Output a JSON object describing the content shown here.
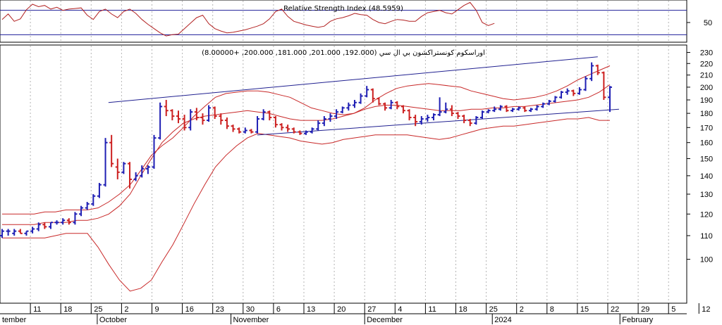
{
  "chart_data": [
    {
      "type": "line",
      "panel": "rsi",
      "title": "Relative Strength Index (48.5959)",
      "ylim": [
        20,
        80
      ],
      "y_ticks": [
        50
      ],
      "reference_levels": [
        70,
        30
      ],
      "grid": true,
      "colors": {
        "line": "#b22222",
        "reference": "#1e1e9a",
        "grid": "#b4b4b4"
      },
      "series": [
        {
          "values": [
            55,
            64,
            52,
            56,
            71,
            80,
            76,
            78,
            72,
            75,
            70,
            72,
            73,
            74,
            62,
            55,
            68,
            72,
            64,
            58,
            68,
            72,
            65,
            55,
            47,
            40,
            33,
            28,
            30,
            31,
            40,
            49,
            58,
            62,
            48,
            40,
            36,
            33,
            34,
            36,
            38,
            41,
            44,
            48,
            56,
            68,
            72,
            60,
            52,
            49,
            46,
            44,
            42,
            44,
            52,
            56,
            58,
            61,
            65,
            63,
            62,
            55,
            50,
            48,
            52,
            55,
            54,
            52,
            52,
            60,
            66,
            68,
            70,
            66,
            64,
            71,
            78,
            83,
            70,
            50,
            45,
            48.6
          ]
        }
      ]
    },
    {
      "type": "ohlc",
      "panel": "price",
      "title": "اوراسكوم كونستراكشون بي ال سي (192.000, 201.000, 181.000, 200.000, +8.00000)",
      "y_scale": "log",
      "ylim": [
        85,
        233
      ],
      "y_ticks": [
        100,
        110,
        120,
        130,
        140,
        150,
        160,
        170,
        180,
        190,
        200,
        210,
        220,
        230
      ],
      "x_tick_labels": [
        "11",
        "18",
        "25",
        "2",
        "9",
        "16",
        "23",
        "30",
        "6",
        "13",
        "20",
        "27",
        "4",
        "11",
        "18",
        "25",
        "2",
        "8",
        "15",
        "22",
        "29",
        "5",
        "12"
      ],
      "month_labels": [
        "tember",
        "October",
        "November",
        "December",
        "2024",
        "February"
      ],
      "grid": true,
      "colors": {
        "up": "#1f1fb4",
        "down": "#cc2020",
        "band": "#c82828",
        "trendline": "#202090",
        "grid": "#b4b4b4"
      },
      "bars": [
        [
          110,
          113,
          109,
          112
        ],
        [
          112,
          113,
          110,
          112
        ],
        [
          111,
          113,
          110,
          112
        ],
        [
          112,
          113,
          111,
          111
        ],
        [
          111,
          112,
          110,
          112
        ],
        [
          112,
          114,
          111,
          113
        ],
        [
          113,
          116,
          112,
          115
        ],
        [
          115,
          116,
          113,
          114
        ],
        [
          114,
          116,
          113,
          116
        ],
        [
          116,
          117,
          115,
          116
        ],
        [
          116,
          118,
          115,
          117
        ],
        [
          117,
          118,
          115,
          116
        ],
        [
          116,
          121,
          115,
          120
        ],
        [
          120,
          124,
          119,
          123
        ],
        [
          123,
          126,
          122,
          125
        ],
        [
          125,
          130,
          124,
          129
        ],
        [
          129,
          136,
          128,
          135
        ],
        [
          135,
          163,
          134,
          160
        ],
        [
          160,
          165,
          145,
          147
        ],
        [
          145,
          150,
          138,
          142
        ],
        [
          142,
          148,
          141,
          147
        ],
        [
          147,
          148,
          133,
          138
        ],
        [
          138,
          142,
          137,
          140
        ],
        [
          140,
          146,
          139,
          144
        ],
        [
          144,
          146,
          141,
          145
        ],
        [
          145,
          165,
          144,
          163
        ],
        [
          163,
          188,
          162,
          185
        ],
        [
          185,
          190,
          178,
          182
        ],
        [
          182,
          183,
          175,
          178
        ],
        [
          178,
          182,
          173,
          176
        ],
        [
          176,
          179,
          168,
          170
        ],
        [
          170,
          183,
          168,
          181
        ],
        [
          181,
          184,
          175,
          177
        ],
        [
          177,
          180,
          172,
          175
        ],
        [
          175,
          186,
          174,
          184
        ],
        [
          184,
          185,
          176,
          178
        ],
        [
          178,
          180,
          172,
          175
        ],
        [
          175,
          177,
          169,
          171
        ],
        [
          171,
          172,
          167,
          169
        ],
        [
          169,
          170,
          166,
          167
        ],
        [
          167,
          170,
          166,
          168
        ],
        [
          168,
          169,
          166,
          167
        ],
        [
          167,
          178,
          166,
          176
        ],
        [
          176,
          183,
          175,
          181
        ],
        [
          181,
          182,
          175,
          177
        ],
        [
          177,
          178,
          170,
          172
        ],
        [
          172,
          173,
          168,
          170
        ],
        [
          170,
          172,
          167,
          169
        ],
        [
          169,
          170,
          166,
          167
        ],
        [
          167,
          168,
          165,
          166
        ],
        [
          166,
          168,
          165,
          167
        ],
        [
          167,
          170,
          166,
          169
        ],
        [
          169,
          175,
          168,
          173
        ],
        [
          173,
          178,
          171,
          176
        ],
        [
          176,
          180,
          174,
          178
        ],
        [
          178,
          183,
          176,
          181
        ],
        [
          181,
          185,
          180,
          184
        ],
        [
          184,
          188,
          182,
          186
        ],
        [
          186,
          190,
          184,
          188
        ],
        [
          188,
          195,
          187,
          193
        ],
        [
          193,
          201,
          192,
          198
        ],
        [
          198,
          199,
          188,
          191
        ],
        [
          191,
          192,
          186,
          187
        ],
        [
          187,
          188,
          182,
          184
        ],
        [
          184,
          190,
          183,
          188
        ],
        [
          188,
          189,
          183,
          185
        ],
        [
          185,
          186,
          180,
          182
        ],
        [
          182,
          183,
          175,
          177
        ],
        [
          177,
          179,
          171,
          174
        ],
        [
          174,
          178,
          172,
          176
        ],
        [
          176,
          179,
          174,
          177
        ],
        [
          177,
          180,
          175,
          179
        ],
        [
          179,
          192,
          178,
          181
        ],
        [
          181,
          188,
          180,
          183
        ],
        [
          183,
          186,
          178,
          180
        ],
        [
          180,
          181,
          176,
          178
        ],
        [
          178,
          179,
          173,
          175
        ],
        [
          175,
          176,
          171,
          173
        ],
        [
          173,
          178,
          172,
          177
        ],
        [
          177,
          182,
          176,
          181
        ],
        [
          181,
          183,
          180,
          182
        ],
        [
          182,
          185,
          181,
          183
        ],
        [
          183,
          186,
          182,
          185
        ],
        [
          185,
          186,
          181,
          182
        ],
        [
          182,
          184,
          181,
          183
        ],
        [
          183,
          185,
          182,
          184
        ],
        [
          184,
          185,
          181,
          182
        ],
        [
          182,
          184,
          181,
          183
        ],
        [
          183,
          186,
          182,
          185
        ],
        [
          185,
          188,
          184,
          187
        ],
        [
          187,
          190,
          186,
          189
        ],
        [
          189,
          193,
          188,
          192
        ],
        [
          192,
          197,
          191,
          196
        ],
        [
          196,
          199,
          194,
          197
        ],
        [
          197,
          198,
          193,
          195
        ],
        [
          195,
          200,
          194,
          198
        ],
        [
          198,
          209,
          197,
          207
        ],
        [
          207,
          221,
          205,
          218
        ],
        [
          218,
          219,
          210,
          212
        ],
        [
          212,
          213,
          190,
          192
        ],
        [
          192,
          201,
          181,
          200
        ]
      ],
      "bollinger_upper": [
        120,
        120,
        120,
        120,
        121,
        121,
        122,
        122,
        122,
        123,
        126,
        130,
        135,
        143,
        152,
        158,
        163,
        170,
        178,
        185,
        192,
        195,
        196,
        197,
        197,
        196,
        194,
        192,
        188,
        184,
        182,
        180,
        179,
        180,
        184,
        190,
        195,
        199,
        201,
        202,
        203,
        202,
        201,
        200,
        197,
        195,
        193,
        191,
        190,
        191,
        192,
        194,
        197,
        201,
        206,
        210,
        214,
        218
      ],
      "bollinger_middle": [
        115,
        115,
        115,
        115,
        116,
        116,
        116,
        117,
        117,
        118,
        120,
        124,
        130,
        140,
        150,
        160,
        167,
        173,
        176,
        178,
        179,
        180,
        181,
        182,
        181,
        180,
        178,
        176,
        175,
        175,
        175,
        176,
        178,
        180,
        183,
        185,
        186,
        186,
        185,
        184,
        183,
        182,
        182,
        182,
        183,
        183,
        184,
        184,
        185,
        185,
        186,
        187,
        188,
        189,
        190,
        192,
        196,
        202
      ],
      "bollinger_lower": [
        109,
        109,
        109,
        109,
        109,
        110,
        111,
        111,
        111,
        105,
        98,
        92,
        88,
        89,
        92,
        99,
        106,
        115,
        125,
        135,
        145,
        152,
        158,
        163,
        166,
        165,
        164,
        163,
        161,
        160,
        159,
        160,
        162,
        163,
        164,
        165,
        165,
        165,
        165,
        164,
        163,
        162,
        163,
        165,
        167,
        169,
        170,
        171,
        171,
        172,
        173,
        174,
        175,
        176,
        176,
        177,
        175,
        175
      ],
      "trendlines": [
        {
          "from": [
            10,
            188
          ],
          "to": [
            56,
            226
          ]
        },
        {
          "from": [
            24,
            165
          ],
          "to": [
            58,
            183
          ]
        }
      ]
    }
  ]
}
